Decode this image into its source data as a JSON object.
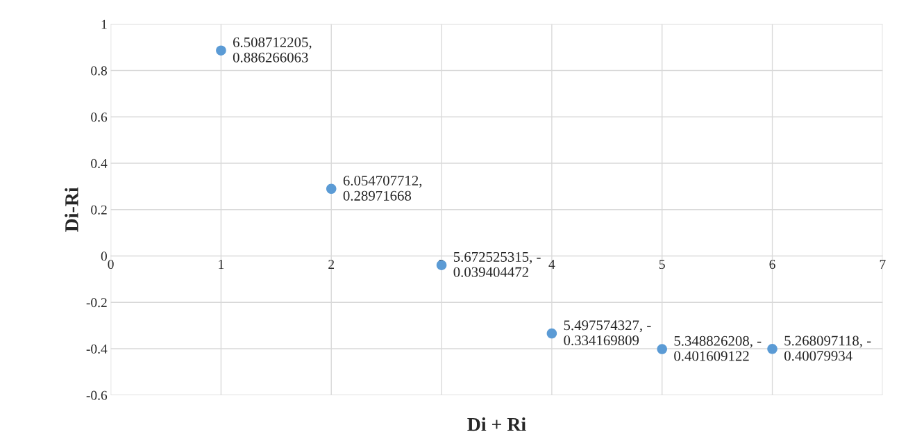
{
  "chart_data": {
    "type": "scatter",
    "xlabel": "Di + Ri",
    "ylabel": "Di-Ri",
    "x": [
      1,
      2,
      3,
      4,
      5,
      6
    ],
    "series": [
      {
        "color": "#5b9bd5",
        "values": [
          0.886266063,
          0.28971668,
          -0.039404472,
          -0.334169809,
          -0.401609122,
          -0.40079934
        ],
        "value_labels": [
          "6.508712205,\n0.886266063",
          "6.054707712,\n0.28971668",
          "5.672525315, -\n0.039404472",
          "5.497574327, -\n0.334169809",
          "5.348826208, -\n0.401609122",
          "5.268097118, -\n0.40079934"
        ]
      }
    ],
    "xlim": [
      0,
      7
    ],
    "xticks": [
      0,
      1,
      2,
      3,
      4,
      5,
      6,
      7
    ],
    "ylim": [
      -0.6,
      1
    ],
    "yticks": [
      -0.6,
      -0.4,
      -0.2,
      0,
      0.2,
      0.4,
      0.6,
      0.8,
      1
    ],
    "grid": true,
    "marker": "circle",
    "legend": false
  }
}
